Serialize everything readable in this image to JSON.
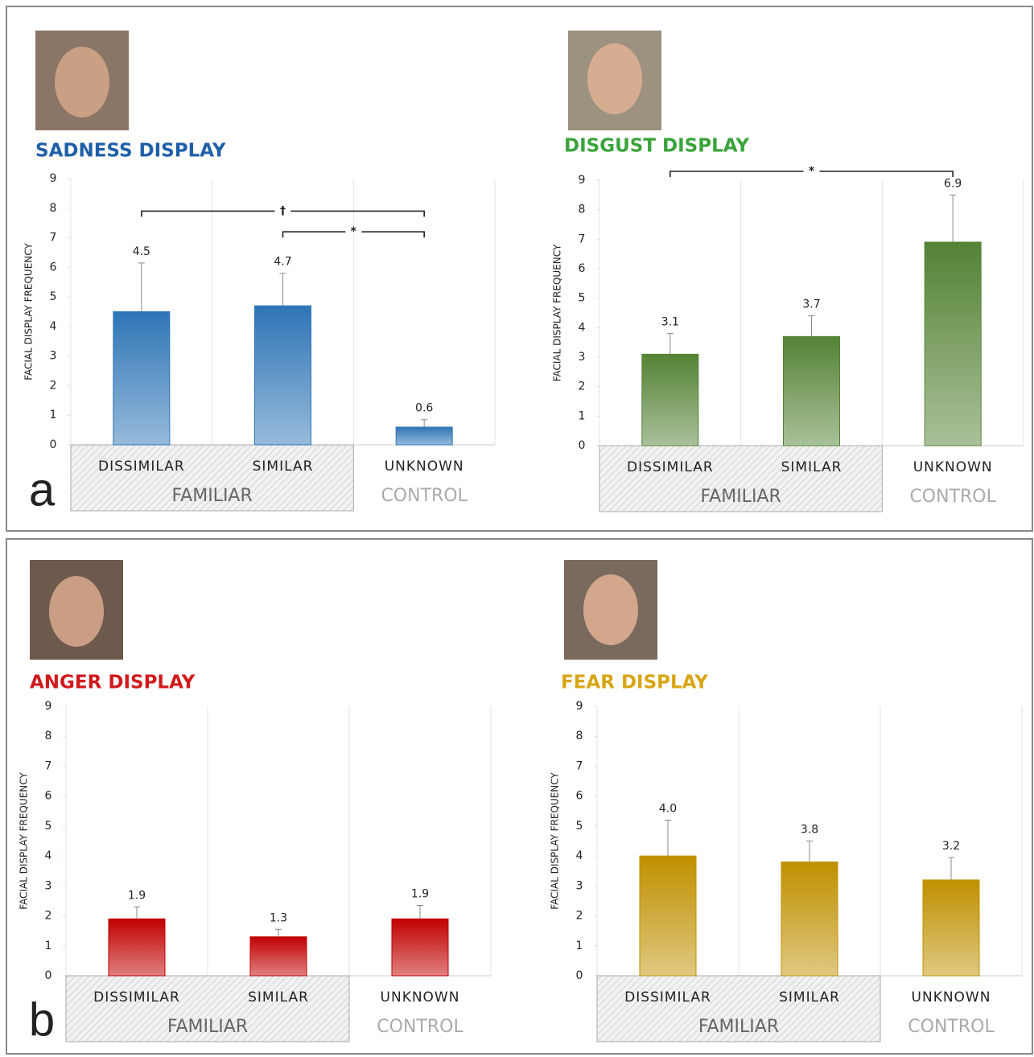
{
  "panels": [
    {
      "label": "a"
    },
    {
      "label": "b"
    }
  ],
  "chart_data": [
    {
      "type": "bar",
      "title": "SADNESS DISPLAY",
      "title_color": "#1f5fa8",
      "ylabel": "FACIAL DISPLAY FREQUENCY",
      "categories": [
        "DISSIMILAR",
        "SIMILAR",
        "UNKNOWN"
      ],
      "values": [
        4.5,
        4.7,
        0.6
      ],
      "value_labels": [
        "4.5",
        "4.7",
        "0.6"
      ],
      "errors": [
        1.65,
        1.1,
        0.25
      ],
      "color": "#2e75b6",
      "ylim": [
        0,
        9
      ],
      "yticks": [
        0,
        1,
        2,
        3,
        4,
        5,
        6,
        7,
        8,
        9
      ],
      "groups": [
        {
          "label": "FAMILIAR",
          "categories": [
            "DISSIMILAR",
            "SIMILAR"
          ],
          "shaded": true
        },
        {
          "label": "CONTROL",
          "categories": [
            "UNKNOWN"
          ],
          "shaded": false
        }
      ],
      "brackets": [
        {
          "label": "†",
          "between": [
            "DISSIMILAR",
            "UNKNOWN"
          ],
          "y": 7.9
        },
        {
          "label": "*",
          "between": [
            "SIMILAR",
            "UNKNOWN"
          ],
          "y": 7.2
        }
      ]
    },
    {
      "type": "bar",
      "title": "DISGUST DISPLAY",
      "title_color": "#3aa33a",
      "ylabel": "FACIAL DISPLAY FREQUENCY",
      "categories": [
        "DISSIMILAR",
        "SIMILAR",
        "UNKNOWN"
      ],
      "values": [
        3.1,
        3.7,
        6.9
      ],
      "value_labels": [
        "3.1",
        "3.7",
        "6.9"
      ],
      "errors": [
        0.7,
        0.7,
        1.6
      ],
      "color": "#548235",
      "ylim": [
        0,
        9
      ],
      "yticks": [
        0,
        1,
        2,
        3,
        4,
        5,
        6,
        7,
        8,
        9
      ],
      "groups": [
        {
          "label": "FAMILIAR",
          "categories": [
            "DISSIMILAR",
            "SIMILAR"
          ],
          "shaded": true
        },
        {
          "label": "CONTROL",
          "categories": [
            "UNKNOWN"
          ],
          "shaded": false
        }
      ],
      "brackets": [
        {
          "label": "*",
          "between": [
            "DISSIMILAR",
            "UNKNOWN"
          ],
          "y": 9.3
        }
      ]
    },
    {
      "type": "bar",
      "title": "ANGER DISPLAY",
      "title_color": "#d0191c",
      "ylabel": "FACIAL DISPLAY FREQUENCY",
      "categories": [
        "DISSIMILAR",
        "SIMILAR",
        "UNKNOWN"
      ],
      "values": [
        1.9,
        1.3,
        1.9
      ],
      "value_labels": [
        "1.9",
        "1.3",
        "1.9"
      ],
      "errors": [
        0.4,
        0.25,
        0.45
      ],
      "color": "#c00000",
      "ylim": [
        0,
        9
      ],
      "yticks": [
        0,
        1,
        2,
        3,
        4,
        5,
        6,
        7,
        8,
        9
      ],
      "groups": [
        {
          "label": "FAMILIAR",
          "categories": [
            "DISSIMILAR",
            "SIMILAR"
          ],
          "shaded": true
        },
        {
          "label": "CONTROL",
          "categories": [
            "UNKNOWN"
          ],
          "shaded": false
        }
      ],
      "brackets": []
    },
    {
      "type": "bar",
      "title": "FEAR DISPLAY",
      "title_color": "#d9a514",
      "ylabel": "FACIAL DISPLAY FREQUENCY",
      "categories": [
        "DISSIMILAR",
        "SIMILAR",
        "UNKNOWN"
      ],
      "values": [
        4.0,
        3.8,
        3.2
      ],
      "value_labels": [
        "4.0",
        "3.8",
        "3.2"
      ],
      "errors": [
        1.2,
        0.7,
        0.75
      ],
      "color": "#bf9000",
      "ylim": [
        0,
        9
      ],
      "yticks": [
        0,
        1,
        2,
        3,
        4,
        5,
        6,
        7,
        8,
        9
      ],
      "groups": [
        {
          "label": "FAMILIAR",
          "categories": [
            "DISSIMILAR",
            "SIMILAR"
          ],
          "shaded": true
        },
        {
          "label": "CONTROL",
          "categories": [
            "UNKNOWN"
          ],
          "shaded": false
        }
      ],
      "brackets": []
    }
  ]
}
